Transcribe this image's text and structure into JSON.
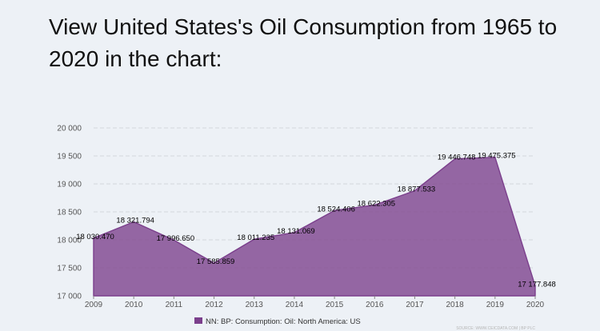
{
  "page": {
    "heading": "View United States's Oil Consumption from 1965 to 2020 in the chart:"
  },
  "chart_data": {
    "type": "area",
    "title": "",
    "xlabel": "",
    "ylabel": "",
    "categories": [
      "2009",
      "2010",
      "2011",
      "2012",
      "2013",
      "2014",
      "2015",
      "2016",
      "2017",
      "2018",
      "2019",
      "2020"
    ],
    "series": [
      {
        "name": "NN: BP: Consumption: Oil: North America: US",
        "color": "#7b3f8c",
        "values": [
          18030.47,
          18321.794,
          17996.65,
          17585.859,
          18011.235,
          18131.069,
          18524.406,
          18622.305,
          18877.533,
          19446.748,
          19475.375,
          17177.848
        ],
        "labels": [
          "18 030.470",
          "18 321.794",
          "17 996.650",
          "17 585.859",
          "18 011.235",
          "18 131.069",
          "18 524.406",
          "18 622.305",
          "18 877.533",
          "19 446.748",
          "19 475.375",
          "17 177.848"
        ]
      }
    ],
    "ylim": [
      17000,
      20000
    ],
    "yticks": [
      17000,
      17500,
      18000,
      18500,
      19000,
      19500,
      20000
    ],
    "ytick_labels": [
      "17 000",
      "17 500",
      "18 000",
      "18 500",
      "19 000",
      "19 500",
      "20 000"
    ],
    "grid": true,
    "legend": "bottom-center",
    "source": "SOURCE: WWW.CEICDATA.COM | BP PLC"
  }
}
